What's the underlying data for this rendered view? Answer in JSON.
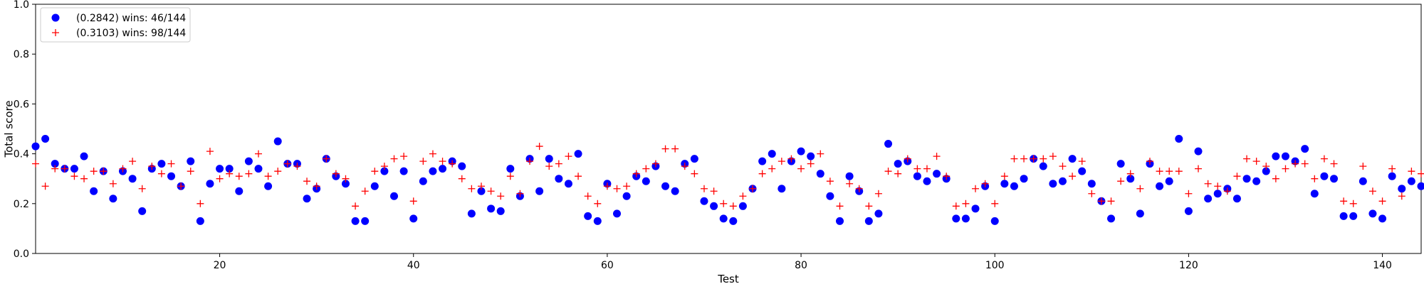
{
  "chart_data": {
    "type": "scatter",
    "xlabel": "Test",
    "ylabel": "Total score",
    "xlim": [
      1,
      144
    ],
    "ylim": [
      0,
      1
    ],
    "xticks": [
      20,
      40,
      60,
      80,
      100,
      120,
      140
    ],
    "yticks": [
      0.0,
      0.2,
      0.4,
      0.6,
      0.8,
      1.0
    ],
    "ytick_labels": [
      "0.0",
      "0.2",
      "0.4",
      "0.6",
      "0.8",
      "1.0"
    ],
    "grid": false,
    "legend_position": "top-left",
    "x": [
      1,
      2,
      3,
      4,
      5,
      6,
      7,
      8,
      9,
      10,
      11,
      12,
      13,
      14,
      15,
      16,
      17,
      18,
      19,
      20,
      21,
      22,
      23,
      24,
      25,
      26,
      27,
      28,
      29,
      30,
      31,
      32,
      33,
      34,
      35,
      36,
      37,
      38,
      39,
      40,
      41,
      42,
      43,
      44,
      45,
      46,
      47,
      48,
      49,
      50,
      51,
      52,
      53,
      54,
      55,
      56,
      57,
      58,
      59,
      60,
      61,
      62,
      63,
      64,
      65,
      66,
      67,
      68,
      69,
      70,
      71,
      72,
      73,
      74,
      75,
      76,
      77,
      78,
      79,
      80,
      81,
      82,
      83,
      84,
      85,
      86,
      87,
      88,
      89,
      90,
      91,
      92,
      93,
      94,
      95,
      96,
      97,
      98,
      99,
      100,
      101,
      102,
      103,
      104,
      105,
      106,
      107,
      108,
      109,
      110,
      111,
      112,
      113,
      114,
      115,
      116,
      117,
      118,
      119,
      120,
      121,
      122,
      123,
      124,
      125,
      126,
      127,
      128,
      129,
      130,
      131,
      132,
      133,
      134,
      135,
      136,
      137,
      138,
      139,
      140,
      141,
      142,
      143,
      144
    ],
    "series": [
      {
        "name": "(0.2842) wins: 46/144",
        "marker": "circle",
        "color": "#0000ff",
        "values": [
          0.43,
          0.46,
          0.36,
          0.34,
          0.34,
          0.39,
          0.25,
          0.33,
          0.22,
          0.33,
          0.3,
          0.17,
          0.34,
          0.36,
          0.31,
          0.27,
          0.37,
          0.13,
          0.28,
          0.34,
          0.34,
          0.25,
          0.37,
          0.34,
          0.27,
          0.45,
          0.36,
          0.36,
          0.22,
          0.26,
          0.38,
          0.31,
          0.28,
          0.13,
          0.13,
          0.27,
          0.33,
          0.23,
          0.33,
          0.14,
          0.29,
          0.33,
          0.34,
          0.37,
          0.35,
          0.16,
          0.25,
          0.18,
          0.17,
          0.34,
          0.23,
          0.38,
          0.25,
          0.38,
          0.3,
          0.28,
          0.4,
          0.15,
          0.13,
          0.28,
          0.16,
          0.23,
          0.31,
          0.29,
          0.35,
          0.27,
          0.25,
          0.36,
          0.38,
          0.21,
          0.19,
          0.14,
          0.13,
          0.19,
          0.26,
          0.37,
          0.4,
          0.26,
          0.37,
          0.41,
          0.39,
          0.32,
          0.23,
          0.13,
          0.31,
          0.25,
          0.13,
          0.16,
          0.44,
          0.36,
          0.37,
          0.31,
          0.29,
          0.32,
          0.3,
          0.14,
          0.14,
          0.18,
          0.27,
          0.13,
          0.28,
          0.27,
          0.3,
          0.38,
          0.35,
          0.28,
          0.29,
          0.38,
          0.33,
          0.28,
          0.21,
          0.14,
          0.36,
          0.3,
          0.16,
          0.36,
          0.27,
          0.29,
          0.46,
          0.17,
          0.41,
          0.22,
          0.24,
          0.26,
          0.22,
          0.3,
          0.29,
          0.33,
          0.39,
          0.39,
          0.37,
          0.42,
          0.24,
          0.31,
          0.3,
          0.15,
          0.15,
          0.29,
          0.16,
          0.14,
          0.31,
          0.26,
          0.29,
          0.27
        ]
      },
      {
        "name": "(0.3103) wins: 98/144",
        "marker": "plus",
        "color": "#ff0000",
        "values": [
          0.36,
          0.27,
          0.34,
          0.34,
          0.31,
          0.3,
          0.33,
          0.33,
          0.28,
          0.34,
          0.37,
          0.26,
          0.35,
          0.32,
          0.36,
          0.27,
          0.33,
          0.2,
          0.41,
          0.3,
          0.32,
          0.31,
          0.32,
          0.4,
          0.31,
          0.33,
          0.36,
          0.35,
          0.29,
          0.27,
          0.38,
          0.32,
          0.3,
          0.19,
          0.25,
          0.33,
          0.35,
          0.38,
          0.39,
          0.21,
          0.37,
          0.4,
          0.37,
          0.36,
          0.3,
          0.26,
          0.27,
          0.25,
          0.23,
          0.31,
          0.24,
          0.37,
          0.43,
          0.35,
          0.36,
          0.39,
          0.31,
          0.23,
          0.2,
          0.27,
          0.26,
          0.27,
          0.32,
          0.34,
          0.36,
          0.42,
          0.42,
          0.35,
          0.32,
          0.26,
          0.25,
          0.2,
          0.19,
          0.23,
          0.26,
          0.32,
          0.34,
          0.37,
          0.38,
          0.34,
          0.36,
          0.4,
          0.29,
          0.19,
          0.28,
          0.26,
          0.19,
          0.24,
          0.33,
          0.32,
          0.38,
          0.34,
          0.34,
          0.39,
          0.31,
          0.19,
          0.2,
          0.26,
          0.28,
          0.2,
          0.31,
          0.38,
          0.38,
          0.38,
          0.38,
          0.39,
          0.35,
          0.31,
          0.37,
          0.24,
          0.21,
          0.21,
          0.29,
          0.32,
          0.26,
          0.37,
          0.33,
          0.33,
          0.33,
          0.24,
          0.34,
          0.28,
          0.27,
          0.25,
          0.31,
          0.38,
          0.37,
          0.35,
          0.3,
          0.34,
          0.36,
          0.36,
          0.3,
          0.38,
          0.36,
          0.21,
          0.2,
          0.35,
          0.25,
          0.21,
          0.34,
          0.23,
          0.33,
          0.32
        ]
      }
    ]
  }
}
